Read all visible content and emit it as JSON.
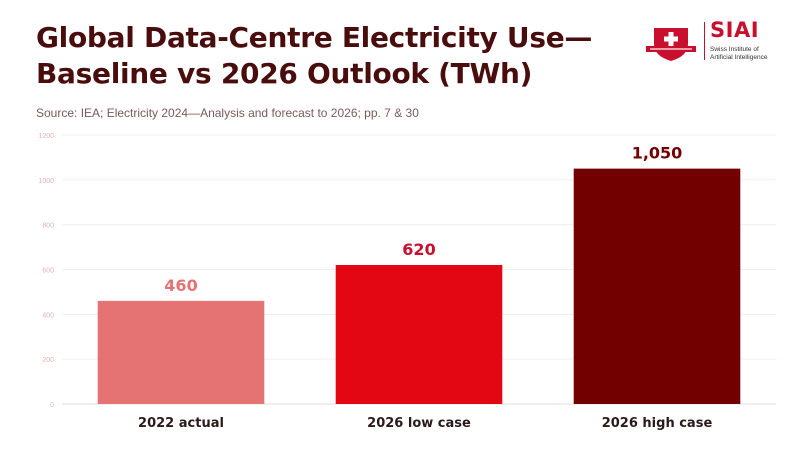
{
  "header": {
    "title_line1": "Global Data-Centre Electricity Use—",
    "title_line2": "Baseline vs 2026 Outlook (TWh)",
    "source": "Source: IEA; Electricity 2024—Analysis and forecast to 2026; pp. 7 & 30"
  },
  "logo": {
    "name": "SIAI",
    "subtitle_line1": "Swiss Institute of",
    "subtitle_line2": "Artificial Intelligence",
    "brand_color": "#c8102e"
  },
  "chart_data": {
    "type": "bar",
    "title": "Global Data-Centre Electricity Use—Baseline vs 2026 Outlook (TWh)",
    "categories": [
      "2022 actual",
      "2026 low case",
      "2026 high case"
    ],
    "values": [
      460,
      620,
      1050
    ],
    "value_labels": [
      "460",
      "620",
      "1,050"
    ],
    "colors": [
      "#e57373",
      "#e30613",
      "#730000"
    ],
    "label_colors": [
      "#e57373",
      "#c8102e",
      "#730000"
    ],
    "ylim": [
      0,
      1200
    ],
    "yticks": [
      0,
      200,
      400,
      600,
      800,
      1000,
      1200
    ],
    "ytick_labels": [
      "0",
      "200",
      "400",
      "600",
      "800",
      "1000",
      "1200"
    ],
    "grid": true,
    "xlabel": "",
    "ylabel": ""
  }
}
